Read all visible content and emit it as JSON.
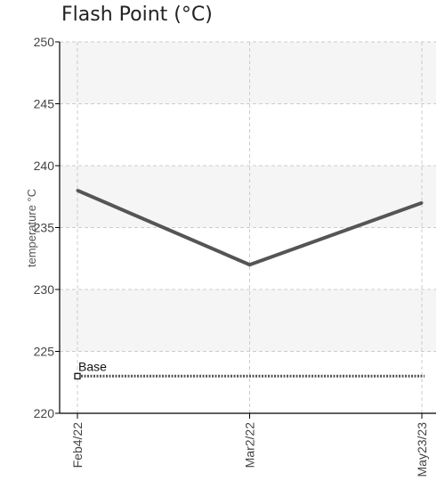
{
  "chart_data": {
    "type": "line",
    "title": "Flash Point (°C)",
    "xlabel": "",
    "ylabel": "temperature °C",
    "categories": [
      "Feb4/22",
      "Mar2/22",
      "May23/23"
    ],
    "series": [
      {
        "values": [
          238,
          232,
          237
        ],
        "color": "#555555"
      }
    ],
    "baseline": {
      "label": "Base",
      "value": 223,
      "color": "#555555",
      "style": "dotted"
    },
    "ylim": [
      220,
      250
    ],
    "yticks": [
      220,
      225,
      230,
      235,
      240,
      245,
      250
    ],
    "grid": true,
    "band_fill": "#f5f5f5",
    "axis_color": "#000000",
    "grid_color": "#cccccc"
  }
}
